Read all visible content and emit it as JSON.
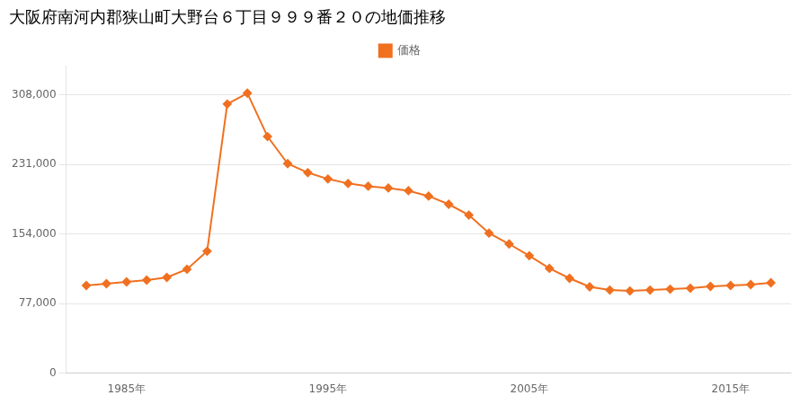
{
  "chart_data": {
    "type": "line",
    "title": "大阪府南河内郡狭山町大野台６丁目９９９番２０の地価推移",
    "x": [
      1983,
      1984,
      1985,
      1986,
      1987,
      1988,
      1989,
      1990,
      1991,
      1992,
      1993,
      1994,
      1995,
      1996,
      1997,
      1998,
      1999,
      2000,
      2001,
      2002,
      2003,
      2004,
      2005,
      2006,
      2007,
      2008,
      2009,
      2010,
      2011,
      2012,
      2013,
      2014,
      2015,
      2016,
      2017
    ],
    "series": [
      {
        "name": "価格",
        "color": "#f07020",
        "marker": "diamond",
        "values": [
          97000,
          99000,
          101000,
          103000,
          106000,
          115000,
          135000,
          298000,
          310000,
          262000,
          232000,
          222000,
          215000,
          210000,
          207000,
          205000,
          202000,
          196000,
          187000,
          175000,
          155000,
          143000,
          130000,
          116000,
          105000,
          95500,
          92000,
          91000,
          92000,
          93000,
          94000,
          96000,
          97000,
          98000,
          100000
        ]
      }
    ],
    "xlim": [
      1982,
      2018
    ],
    "xticks": [
      {
        "value": 1985,
        "label": "1985年"
      },
      {
        "value": 1995,
        "label": "1995年"
      },
      {
        "value": 2005,
        "label": "2005年"
      },
      {
        "value": 2015,
        "label": "2015年"
      }
    ],
    "ylim": [
      0,
      340000
    ],
    "yticks": [
      0,
      {
        "value": 77000,
        "label": "77,000"
      },
      {
        "value": 154000,
        "label": "154,000"
      },
      {
        "value": 231000,
        "label": "231,000"
      },
      {
        "value": 308000,
        "label": "308,000"
      }
    ],
    "grid": "y",
    "legend": "top"
  }
}
